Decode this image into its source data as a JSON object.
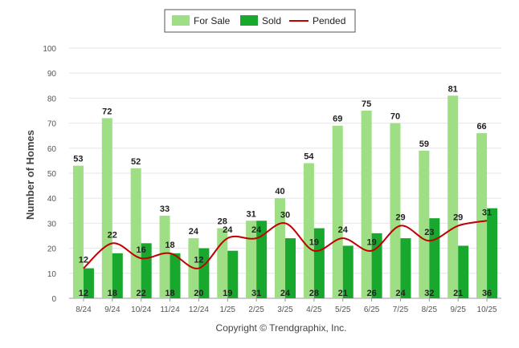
{
  "chart_data": {
    "type": "bar",
    "ylabel": "Number of Homes",
    "ylim": [
      0,
      100
    ],
    "yticks": [
      0,
      10,
      20,
      30,
      40,
      50,
      60,
      70,
      80,
      90,
      100
    ],
    "categories": [
      "8/24",
      "9/24",
      "10/24",
      "11/24",
      "12/24",
      "1/25",
      "2/25",
      "3/25",
      "4/25",
      "5/25",
      "6/25",
      "7/25",
      "8/25",
      "9/25",
      "10/25"
    ],
    "series": [
      {
        "name": "For Sale",
        "type": "bar",
        "color": "#9ede84",
        "values": [
          53,
          72,
          52,
          33,
          24,
          28,
          31,
          40,
          54,
          69,
          75,
          70,
          59,
          81,
          66
        ]
      },
      {
        "name": "Sold",
        "type": "bar",
        "color": "#18a82e",
        "values": [
          12,
          18,
          22,
          18,
          20,
          19,
          31,
          24,
          28,
          21,
          26,
          24,
          32,
          21,
          36
        ]
      },
      {
        "name": "Pended",
        "type": "line",
        "color": "#c00000",
        "values": [
          12,
          22,
          16,
          18,
          12,
          24,
          24,
          30,
          19,
          24,
          19,
          29,
          23,
          29,
          31
        ]
      }
    ],
    "legend_position": "top-center",
    "grid": true
  },
  "footer": {
    "copyright": "Copyright © Trendgraphix, Inc."
  }
}
